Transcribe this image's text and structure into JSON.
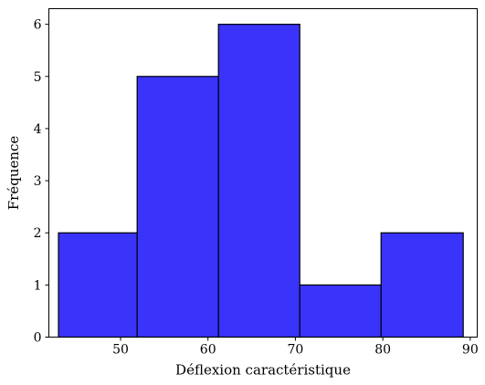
{
  "chart_data": {
    "type": "bar",
    "subtype": "histogram",
    "title": "",
    "xlabel": "Déflexion caractéristique",
    "ylabel": "Fréquence",
    "bins": [
      {
        "start": 42.9,
        "end": 51.9,
        "count": 2
      },
      {
        "start": 51.9,
        "end": 61.2,
        "count": 5
      },
      {
        "start": 61.2,
        "end": 70.5,
        "count": 6
      },
      {
        "start": 70.5,
        "end": 79.8,
        "count": 1
      },
      {
        "start": 79.8,
        "end": 89.2,
        "count": 2
      }
    ],
    "xlim": [
      41.8,
      90.8
    ],
    "ylim": [
      0,
      6.3
    ],
    "xticks": [
      50,
      60,
      70,
      80,
      90
    ],
    "yticks": [
      0,
      1,
      2,
      3,
      4,
      5,
      6
    ],
    "grid": false,
    "legend": "none",
    "bar_color": "#3a33fa",
    "edge_color": "#000000"
  }
}
